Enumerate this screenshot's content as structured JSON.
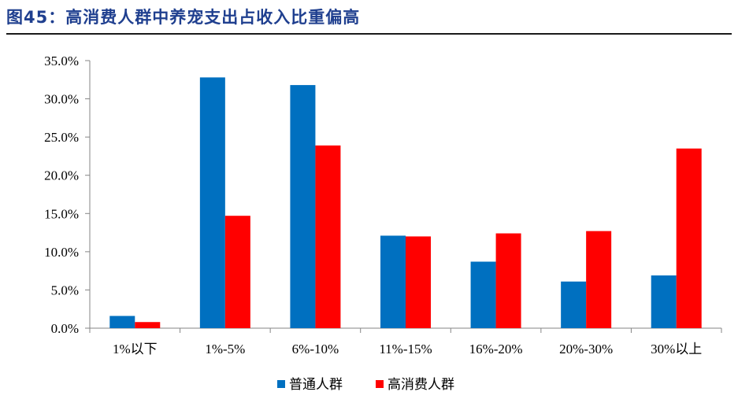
{
  "figure": {
    "title": "图45：高消费人群中养宠支出占收入比重偏高"
  },
  "chart_data": {
    "type": "bar",
    "categories": [
      "1%以下",
      "1%-5%",
      "6%-10%",
      "11%-15%",
      "16%-20%",
      "20%-30%",
      "30%以上"
    ],
    "series": [
      {
        "name": "普通人群",
        "values": [
          1.6,
          32.8,
          31.8,
          12.1,
          8.7,
          6.1,
          6.9
        ],
        "color": "#0070c0"
      },
      {
        "name": "高消费人群",
        "values": [
          0.8,
          14.7,
          23.9,
          12.0,
          12.4,
          12.7,
          23.5
        ],
        "color": "#ff0000"
      }
    ],
    "yticks": [
      "0.0%",
      "5.0%",
      "10.0%",
      "15.0%",
      "20.0%",
      "25.0%",
      "30.0%",
      "35.0%"
    ],
    "ylim": [
      0,
      35
    ],
    "ylabel": "",
    "xlabel": "",
    "legend_position": "bottom",
    "grid": false
  }
}
